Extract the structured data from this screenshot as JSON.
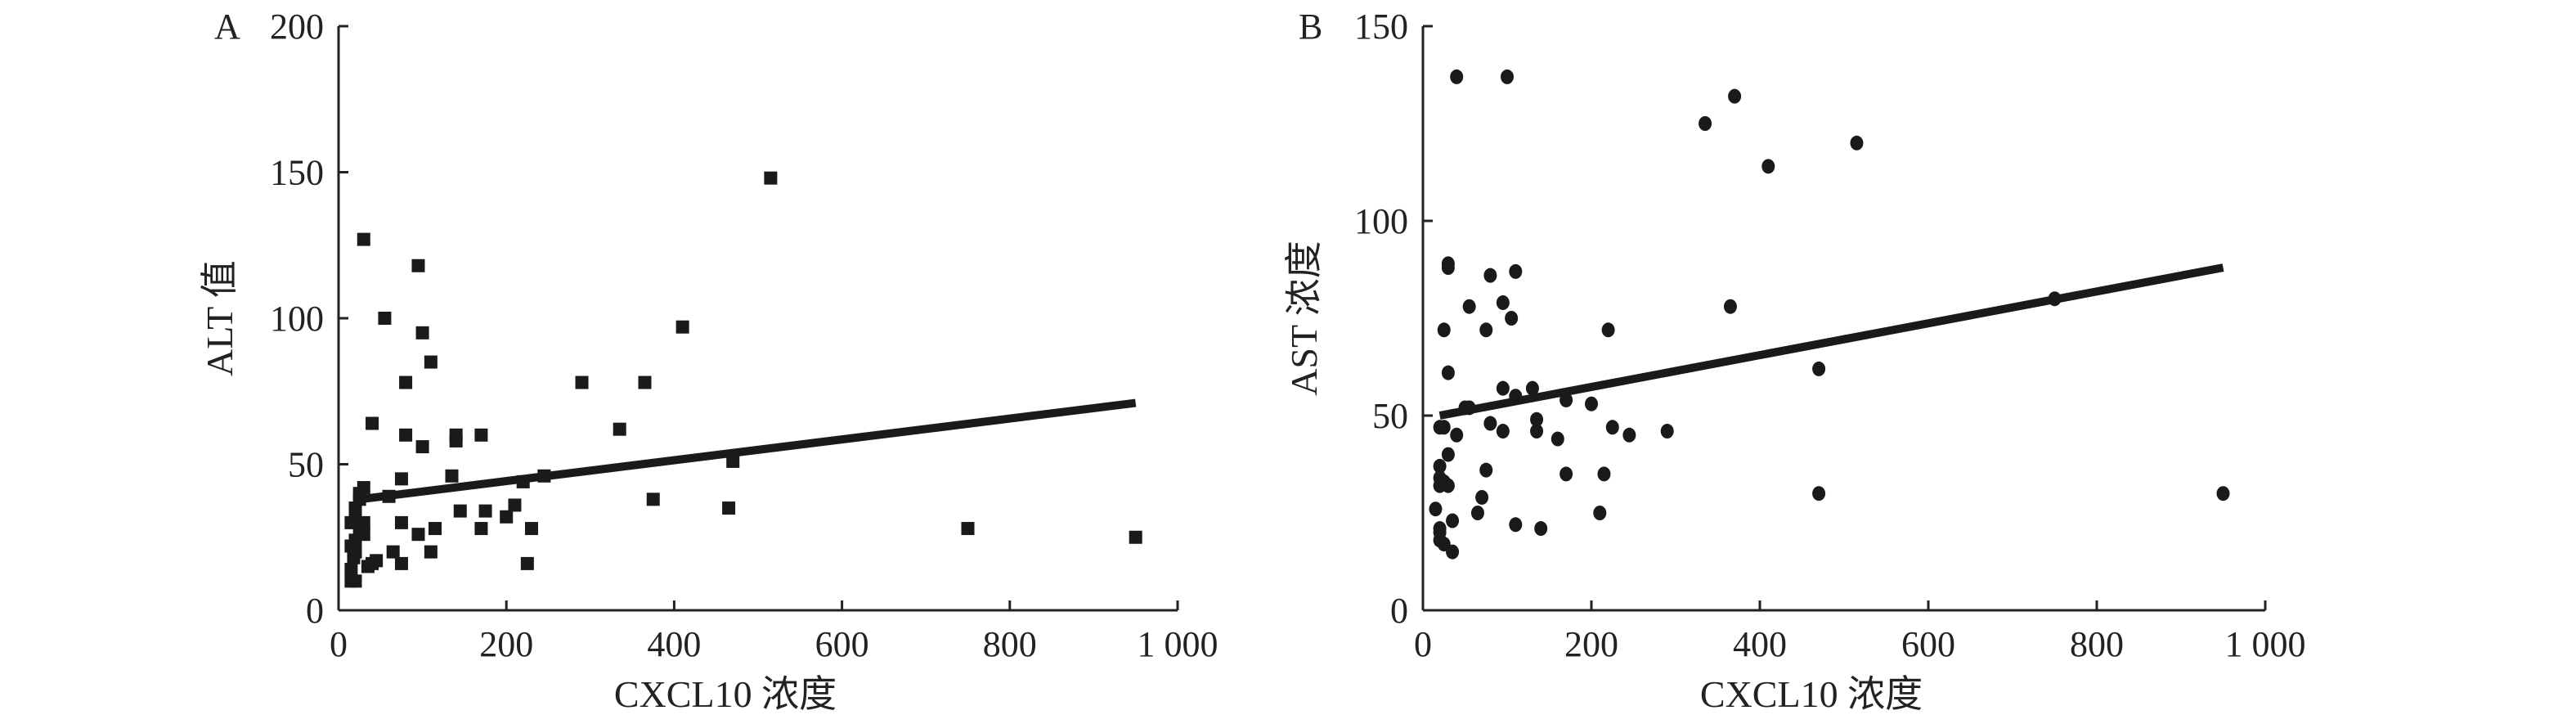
{
  "chart_data": [
    {
      "type": "scatter",
      "panel_label": "A",
      "xlabel": "CXCL10 浓度",
      "ylabel": "ALT 值",
      "xlim": [
        0,
        1000
      ],
      "ylim": [
        0,
        200
      ],
      "xticks": [
        "0",
        "200",
        "400",
        "600",
        "800",
        "1 000"
      ],
      "xtick_values": [
        0,
        200,
        400,
        600,
        800,
        1000
      ],
      "yticks": [
        "0",
        "50",
        "100",
        "150",
        "200"
      ],
      "ytick_values": [
        0,
        50,
        100,
        150,
        200
      ],
      "marker": "square",
      "grid": false,
      "points": [
        [
          30,
          127
        ],
        [
          95,
          118
        ],
        [
          55,
          100
        ],
        [
          100,
          95
        ],
        [
          110,
          85
        ],
        [
          410,
          97
        ],
        [
          515,
          148
        ],
        [
          290,
          78
        ],
        [
          365,
          78
        ],
        [
          80,
          78
        ],
        [
          335,
          62
        ],
        [
          40,
          64
        ],
        [
          80,
          60
        ],
        [
          140,
          60
        ],
        [
          140,
          58
        ],
        [
          100,
          56
        ],
        [
          170,
          60
        ],
        [
          135,
          46
        ],
        [
          75,
          45
        ],
        [
          60,
          39
        ],
        [
          220,
          44
        ],
        [
          245,
          46
        ],
        [
          470,
          51
        ],
        [
          375,
          38
        ],
        [
          465,
          35
        ],
        [
          145,
          34
        ],
        [
          175,
          34
        ],
        [
          210,
          36
        ],
        [
          200,
          32
        ],
        [
          115,
          28
        ],
        [
          170,
          28
        ],
        [
          230,
          28
        ],
        [
          75,
          30
        ],
        [
          95,
          26
        ],
        [
          750,
          28
        ],
        [
          950,
          25
        ],
        [
          110,
          20
        ],
        [
          65,
          20
        ],
        [
          75,
          16
        ],
        [
          225,
          16
        ],
        [
          45,
          17
        ],
        [
          35,
          15
        ],
        [
          40,
          16
        ],
        [
          15,
          10
        ],
        [
          20,
          10
        ],
        [
          15,
          14
        ],
        [
          18,
          18
        ],
        [
          20,
          20
        ],
        [
          20,
          24
        ],
        [
          25,
          28
        ],
        [
          15,
          30
        ],
        [
          30,
          30
        ],
        [
          20,
          35
        ],
        [
          25,
          40
        ],
        [
          30,
          42
        ],
        [
          25,
          38
        ],
        [
          15,
          22
        ],
        [
          30,
          26
        ],
        [
          20,
          32
        ]
      ],
      "fit_line": [
        [
          25,
          38
        ],
        [
          950,
          71
        ]
      ]
    },
    {
      "type": "scatter",
      "panel_label": "B",
      "xlabel": "CXCL10 浓度",
      "ylabel": "AST 浓度",
      "xlim": [
        0,
        1000
      ],
      "ylim": [
        0,
        150
      ],
      "xticks": [
        "0",
        "200",
        "400",
        "600",
        "800",
        "1 000"
      ],
      "xtick_values": [
        0,
        200,
        400,
        600,
        800,
        1000
      ],
      "yticks": [
        "0",
        "50",
        "100",
        "150"
      ],
      "ytick_values": [
        0,
        50,
        100,
        150
      ],
      "marker": "circle",
      "grid": false,
      "points": [
        [
          40,
          137
        ],
        [
          100,
          137
        ],
        [
          370,
          132
        ],
        [
          335,
          125
        ],
        [
          515,
          120
        ],
        [
          410,
          114
        ],
        [
          30,
          89
        ],
        [
          30,
          88
        ],
        [
          80,
          86
        ],
        [
          110,
          87
        ],
        [
          95,
          79
        ],
        [
          55,
          78
        ],
        [
          105,
          75
        ],
        [
          25,
          72
        ],
        [
          75,
          72
        ],
        [
          220,
          72
        ],
        [
          365,
          78
        ],
        [
          750,
          80
        ],
        [
          30,
          61
        ],
        [
          470,
          62
        ],
        [
          95,
          57
        ],
        [
          130,
          57
        ],
        [
          110,
          55
        ],
        [
          50,
          52
        ],
        [
          55,
          52
        ],
        [
          170,
          54
        ],
        [
          200,
          53
        ],
        [
          25,
          47
        ],
        [
          80,
          48
        ],
        [
          135,
          49
        ],
        [
          20,
          47
        ],
        [
          40,
          45
        ],
        [
          95,
          46
        ],
        [
          135,
          46
        ],
        [
          160,
          44
        ],
        [
          225,
          47
        ],
        [
          245,
          45
        ],
        [
          290,
          46
        ],
        [
          30,
          40
        ],
        [
          75,
          36
        ],
        [
          170,
          35
        ],
        [
          215,
          35
        ],
        [
          20,
          37
        ],
        [
          20,
          34
        ],
        [
          25,
          33
        ],
        [
          20,
          32
        ],
        [
          30,
          32
        ],
        [
          70,
          29
        ],
        [
          470,
          30
        ],
        [
          950,
          30
        ],
        [
          15,
          26
        ],
        [
          65,
          25
        ],
        [
          210,
          25
        ],
        [
          35,
          23
        ],
        [
          110,
          22
        ],
        [
          140,
          21
        ],
        [
          20,
          21
        ],
        [
          20,
          20
        ],
        [
          20,
          18
        ],
        [
          25,
          17
        ],
        [
          35,
          15
        ]
      ],
      "fit_line": [
        [
          20,
          50
        ],
        [
          950,
          88
        ]
      ]
    }
  ]
}
